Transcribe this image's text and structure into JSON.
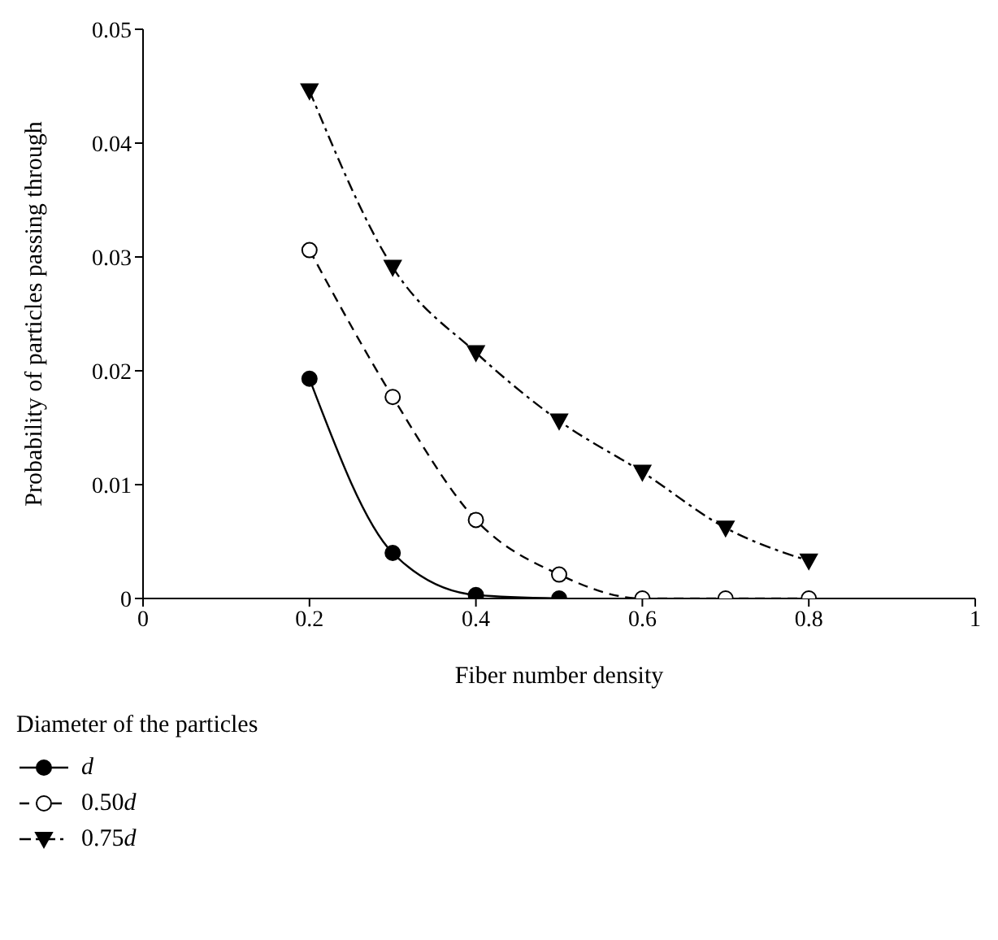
{
  "chart_data": {
    "type": "line",
    "xlabel": "Fiber number density",
    "ylabel": "Probability of particles passing through",
    "legend_title": "Diameter of the particles",
    "legend": "bottom",
    "xlim": [
      0,
      1
    ],
    "xticks": [
      0,
      0.2,
      0.4,
      0.6,
      0.8,
      1
    ],
    "ylim": [
      0,
      0.05
    ],
    "yticks": [
      0,
      0.01,
      0.02,
      0.03,
      0.04,
      0.05
    ],
    "series": [
      {
        "name": "d",
        "color": "#000000",
        "marker": "circle",
        "line_style": "solid",
        "x": [
          0.2,
          0.3,
          0.4,
          0.5
        ],
        "values": [
          0.0193,
          0.004,
          0.0003,
          0
        ]
      },
      {
        "name": "0.50d",
        "color": "#000000",
        "marker": "circle",
        "colors": [
          "#ffffff",
          "#ffffff",
          "#ffffff",
          "#ffffff",
          "#ffffff",
          "#ffffff",
          "#ffffff"
        ],
        "line_style": "dashed",
        "x": [
          0.2,
          0.3,
          0.4,
          0.5,
          0.6,
          0.7,
          0.8
        ],
        "values": [
          0.0306,
          0.0177,
          0.0069,
          0.0021,
          0,
          0,
          0
        ]
      },
      {
        "name": "0.75d",
        "color": "#000000",
        "marker": "triangle",
        "line_style": "dashdot",
        "x": [
          0.2,
          0.3,
          0.4,
          0.5,
          0.6,
          0.7,
          0.8
        ],
        "values": [
          0.0446,
          0.0291,
          0.0216,
          0.0156,
          0.0111,
          0.0062,
          0.0033
        ]
      }
    ]
  }
}
